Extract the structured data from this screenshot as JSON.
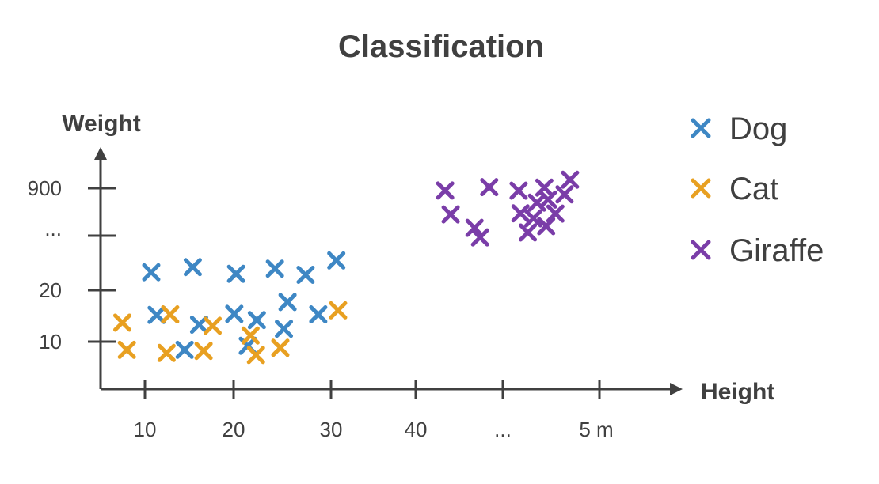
{
  "chart_data": {
    "type": "scatter",
    "title": "Classification",
    "xlabel": "Height",
    "ylabel": "Weight",
    "x_ticks": [
      "10",
      "20",
      "30",
      "40",
      "...",
      "5 m"
    ],
    "y_ticks": [
      "10",
      "20",
      "...",
      "900"
    ],
    "grid": false,
    "legend_position": "right",
    "series": [
      {
        "name": "Dog",
        "color": "#3E87C4",
        "points": [
          [
            10.7,
            23.5
          ],
          [
            15.3,
            24.5
          ],
          [
            20.1,
            23.2
          ],
          [
            24.4,
            24.2
          ],
          [
            27.8,
            23.0
          ],
          [
            31.2,
            25.8
          ],
          [
            11.3,
            15.2
          ],
          [
            19.9,
            15.4
          ],
          [
            25.8,
            17.7
          ],
          [
            16.0,
            13.3
          ],
          [
            22.4,
            14.2
          ],
          [
            29.2,
            15.3
          ],
          [
            25.4,
            12.5
          ],
          [
            21.4,
            9.2
          ],
          [
            14.4,
            8.4
          ]
        ]
      },
      {
        "name": "Cat",
        "color": "#E8A021",
        "points": [
          [
            7.5,
            13.7
          ],
          [
            12.8,
            15.3
          ],
          [
            17.5,
            13.1
          ],
          [
            21.7,
            11.2
          ],
          [
            31.4,
            16.1
          ],
          [
            8.0,
            8.4
          ],
          [
            12.4,
            7.8
          ],
          [
            16.5,
            8.2
          ],
          [
            22.3,
            7.4
          ],
          [
            25.0,
            8.8
          ]
        ]
      },
      {
        "name": "Giraffe",
        "color": "#7A3DA8",
        "points": [
          [
            41.6,
            861
          ],
          [
            41.9,
            458
          ],
          [
            43.2,
            232
          ],
          [
            43.5,
            71
          ],
          [
            44.0,
            918
          ],
          [
            45.6,
            858
          ],
          [
            45.7,
            477
          ],
          [
            46.1,
            154
          ],
          [
            46.4,
            392
          ],
          [
            46.6,
            657
          ],
          [
            47.0,
            910
          ],
          [
            47.2,
            708
          ],
          [
            47.1,
            261
          ],
          [
            47.6,
            472
          ],
          [
            48.1,
            796
          ],
          [
            48.4,
            1043
          ]
        ]
      }
    ]
  }
}
